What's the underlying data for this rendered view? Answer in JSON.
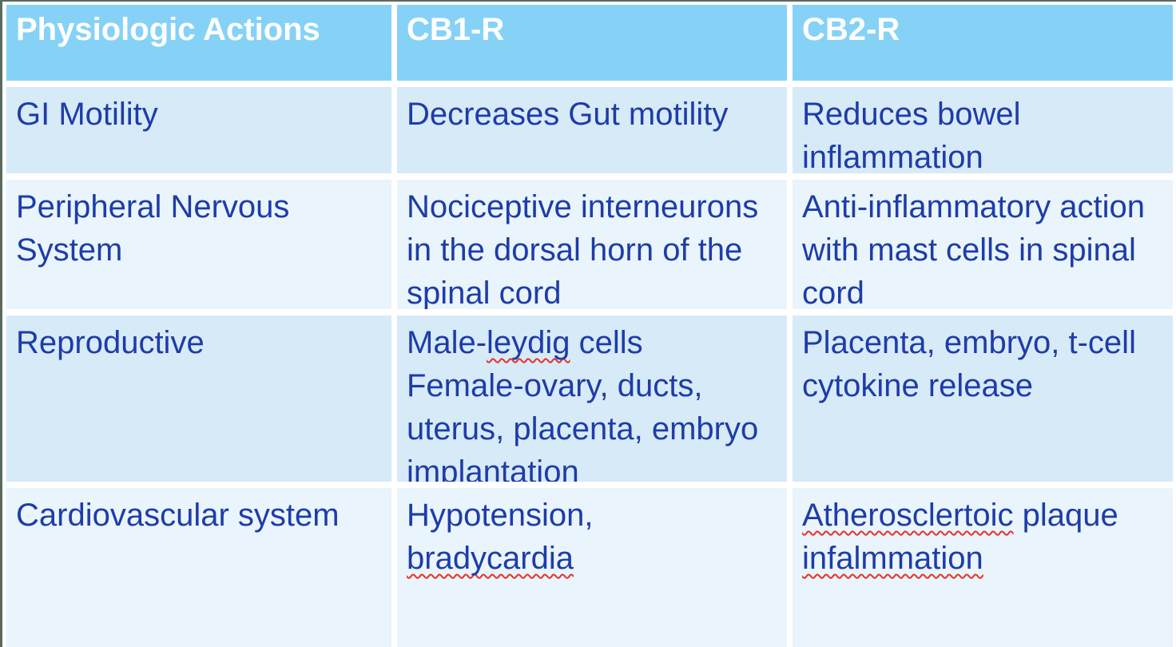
{
  "table": {
    "headers": [
      "Physiologic Actions",
      "CB1-R",
      "CB2-R"
    ],
    "rows": [
      {
        "action": "GI Motility",
        "cb1": "Decreases Gut motility",
        "cb2": "Reduces bowel inflammation"
      },
      {
        "action": "Peripheral Nervous System",
        "cb1": "Nociceptive interneurons in the dorsal horn of the spinal cord",
        "cb2": "Anti-inflammatory action with mast cells in spinal cord"
      },
      {
        "action": "Reproductive",
        "cb1_parts": [
          "Male-",
          "leydig",
          " cells"
        ],
        "cb1_line2": "Female-ovary, ducts, uterus, placenta, embryo implantation",
        "cb2": "Placenta, embryo, t-cell cytokine release"
      },
      {
        "action": "Cardiovascular system",
        "cb1_line1": "Hypotension,",
        "cb1_line2": "bradycardia",
        "cb2_parts": [
          "Atherosclertoic",
          " plaque"
        ],
        "cb2_line2": "infalmmation"
      }
    ],
    "misspelled_words": [
      "leydig",
      "bradycardia",
      "Atherosclertoic",
      "infalmmation"
    ],
    "colors": {
      "header_bg": "#86d2f7",
      "row_odd_bg": "#d7eaf8",
      "row_even_bg": "#e9f4fc",
      "header_text": "#ffffff",
      "body_text": "#1e3ca8",
      "spellcheck_underline": "#e8312a",
      "edge_line": "#5a6a5e"
    }
  }
}
